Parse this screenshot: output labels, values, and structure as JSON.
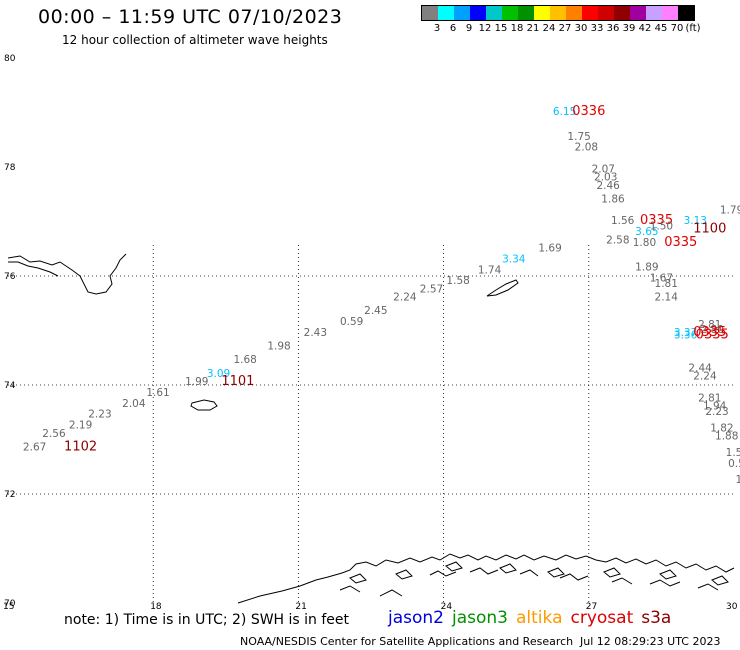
{
  "header": {
    "title": "00:00 – 11:59 UTC 07/10/2023",
    "subtitle": "12 hour collection of altimeter wave heights"
  },
  "legend": {
    "colors": [
      "#808080",
      "#00ffff",
      "#00a0ff",
      "#0000ff",
      "#00c8c8",
      "#00c000",
      "#009000",
      "#ffff00",
      "#ffc000",
      "#ff8000",
      "#ff0000",
      "#d00000",
      "#900000",
      "#a000a0",
      "#c8a0ff",
      "#ff80ff",
      "#000000"
    ],
    "ticks": [
      "3",
      "6",
      "9",
      "12",
      "15",
      "18",
      "21",
      "24",
      "27",
      "30",
      "33",
      "36",
      "39",
      "42",
      "45",
      "70",
      "(ft)"
    ]
  },
  "map": {
    "lat_ticks": [
      "80",
      "78",
      "76",
      "74",
      "72",
      "70"
    ],
    "lon_ticks": [
      "15",
      "18",
      "21",
      "24",
      "27",
      "30"
    ],
    "points": [
      {
        "t": "6.15",
        "lon": 26.5,
        "lat": 78.95,
        "c": "#00bfff"
      },
      {
        "t": "0336",
        "lon": 27.0,
        "lat": 78.95,
        "c": "#e00000",
        "big": true
      },
      {
        "t": "1.75",
        "lon": 26.8,
        "lat": 78.5,
        "c": "#666666"
      },
      {
        "t": "2.08",
        "lon": 26.95,
        "lat": 78.3,
        "c": "#666666"
      },
      {
        "t": "2.07",
        "lon": 27.3,
        "lat": 77.9,
        "c": "#666666"
      },
      {
        "t": "2.03",
        "lon": 27.35,
        "lat": 77.75,
        "c": "#666666"
      },
      {
        "t": "2.46",
        "lon": 27.4,
        "lat": 77.6,
        "c": "#666666"
      },
      {
        "t": "1.86",
        "lon": 27.5,
        "lat": 77.35,
        "c": "#666666"
      },
      {
        "t": "1.56",
        "lon": 27.7,
        "lat": 76.95,
        "c": "#666666"
      },
      {
        "t": "0335",
        "lon": 28.4,
        "lat": 76.95,
        "c": "#e00000",
        "big": true
      },
      {
        "t": "3.65",
        "lon": 28.2,
        "lat": 76.75,
        "c": "#00bfff"
      },
      {
        "t": "1.50",
        "lon": 28.5,
        "lat": 76.85,
        "c": "#666666"
      },
      {
        "t": "2.58",
        "lon": 27.6,
        "lat": 76.6,
        "c": "#666666"
      },
      {
        "t": "1.80",
        "lon": 28.15,
        "lat": 76.55,
        "c": "#666666"
      },
      {
        "t": "0335",
        "lon": 28.9,
        "lat": 76.55,
        "c": "#e00000",
        "big": true
      },
      {
        "t": "3.13",
        "lon": 29.2,
        "lat": 76.95,
        "c": "#00bfff"
      },
      {
        "t": "1100",
        "lon": 29.5,
        "lat": 76.8,
        "c": "#8b0000",
        "big": true
      },
      {
        "t": "1.79",
        "lon": 29.95,
        "lat": 77.15,
        "c": "#666666"
      },
      {
        "t": "1.69",
        "lon": 26.2,
        "lat": 76.45,
        "c": "#666666"
      },
      {
        "t": "3.34",
        "lon": 25.45,
        "lat": 76.25,
        "c": "#00bfff"
      },
      {
        "t": "1.74",
        "lon": 24.95,
        "lat": 76.05,
        "c": "#666666"
      },
      {
        "t": "1.58",
        "lon": 24.3,
        "lat": 75.85,
        "c": "#666666"
      },
      {
        "t": "2.57",
        "lon": 23.75,
        "lat": 75.7,
        "c": "#666666"
      },
      {
        "t": "2.24",
        "lon": 23.2,
        "lat": 75.55,
        "c": "#666666"
      },
      {
        "t": "2.45",
        "lon": 22.6,
        "lat": 75.3,
        "c": "#666666"
      },
      {
        "t": "0.59",
        "lon": 22.1,
        "lat": 75.1,
        "c": "#666666"
      },
      {
        "t": "2.43",
        "lon": 21.35,
        "lat": 74.9,
        "c": "#666666"
      },
      {
        "t": "1.98",
        "lon": 20.6,
        "lat": 74.65,
        "c": "#666666"
      },
      {
        "t": "1.68",
        "lon": 19.9,
        "lat": 74.4,
        "c": "#666666"
      },
      {
        "t": "3.09",
        "lon": 19.35,
        "lat": 74.15,
        "c": "#00bfff"
      },
      {
        "t": "1.99",
        "lon": 18.9,
        "lat": 74.0,
        "c": "#666666"
      },
      {
        "t": "1101",
        "lon": 19.75,
        "lat": 74.0,
        "c": "#8b0000",
        "big": true
      },
      {
        "t": "1.61",
        "lon": 18.1,
        "lat": 73.8,
        "c": "#666666"
      },
      {
        "t": "2.04",
        "lon": 17.6,
        "lat": 73.6,
        "c": "#666666"
      },
      {
        "t": "2.23",
        "lon": 16.9,
        "lat": 73.4,
        "c": "#666666"
      },
      {
        "t": "2.19",
        "lon": 16.5,
        "lat": 73.2,
        "c": "#666666"
      },
      {
        "t": "2.56",
        "lon": 15.95,
        "lat": 73.05,
        "c": "#666666"
      },
      {
        "t": "2.67",
        "lon": 15.55,
        "lat": 72.8,
        "c": "#666666"
      },
      {
        "t": "1102",
        "lon": 16.5,
        "lat": 72.8,
        "c": "#8b0000",
        "big": true
      },
      {
        "t": "1.89",
        "lon": 28.2,
        "lat": 76.1,
        "c": "#666666"
      },
      {
        "t": "1.67",
        "lon": 28.5,
        "lat": 75.9,
        "c": "#666666"
      },
      {
        "t": "1.81",
        "lon": 28.6,
        "lat": 75.8,
        "c": "#666666"
      },
      {
        "t": "2.14",
        "lon": 28.6,
        "lat": 75.55,
        "c": "#666666"
      },
      {
        "t": "2.81",
        "lon": 29.5,
        "lat": 75.05,
        "c": "#666666"
      },
      {
        "t": "2.80",
        "lon": 29.55,
        "lat": 74.95,
        "c": "#666666"
      },
      {
        "t": "3.37",
        "lon": 29.0,
        "lat": 74.9,
        "c": "#00bfff"
      },
      {
        "t": "3.36",
        "lon": 29.0,
        "lat": 74.85,
        "c": "#00bfff"
      },
      {
        "t": "0335",
        "lon": 29.5,
        "lat": 74.9,
        "c": "#e00000",
        "big": true
      },
      {
        "t": "0335",
        "lon": 29.55,
        "lat": 74.85,
        "c": "#e00000",
        "big": true
      },
      {
        "t": "2.44",
        "lon": 29.3,
        "lat": 74.25,
        "c": "#666666"
      },
      {
        "t": "2.24",
        "lon": 29.4,
        "lat": 74.1,
        "c": "#666666"
      },
      {
        "t": "2.81",
        "lon": 29.5,
        "lat": 73.7,
        "c": "#666666"
      },
      {
        "t": "1.94",
        "lon": 29.6,
        "lat": 73.55,
        "c": "#666666"
      },
      {
        "t": "2.23",
        "lon": 29.65,
        "lat": 73.45,
        "c": "#666666"
      },
      {
        "t": "1.82",
        "lon": 29.75,
        "lat": 73.15,
        "c": "#666666"
      },
      {
        "t": "1.88",
        "lon": 29.85,
        "lat": 73.0,
        "c": "#666666"
      },
      {
        "t": "1.5",
        "lon": 30.0,
        "lat": 72.7,
        "c": "#666666"
      },
      {
        "t": "0.5",
        "lon": 30.05,
        "lat": 72.5,
        "c": "#666666"
      },
      {
        "t": "1",
        "lon": 30.1,
        "lat": 72.2,
        "c": "#666666"
      }
    ]
  },
  "note": "note:  1) Time is in UTC; 2) SWH is in feet",
  "satellites": [
    {
      "name": "jason2",
      "color": "#0000dd"
    },
    {
      "name": "jason3",
      "color": "#009000"
    },
    {
      "name": "altika",
      "color": "#ff9900"
    },
    {
      "name": "cryosat",
      "color": "#dd0000"
    },
    {
      "name": "s3a",
      "color": "#8b0000"
    }
  ],
  "footer": {
    "org": "NOAA/NESDIS Center for Satellite Applications and Research",
    "time": "Jul 12 08:29:23 UTC 2023"
  }
}
